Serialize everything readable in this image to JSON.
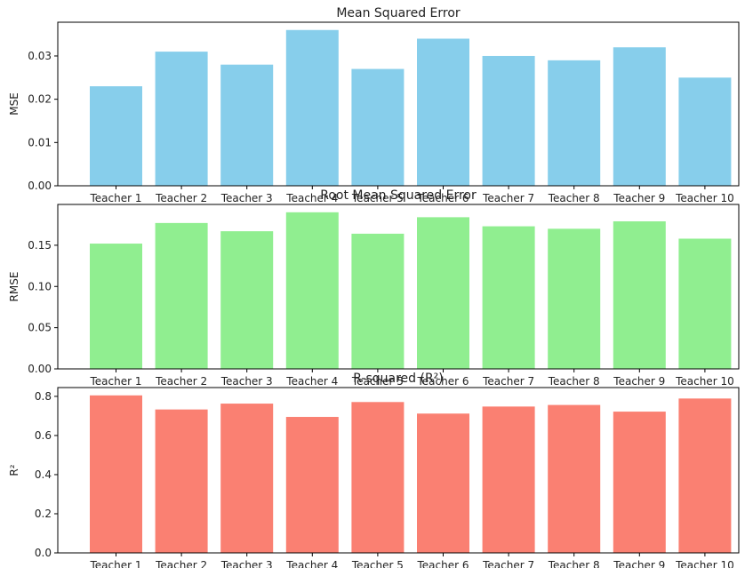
{
  "chart_data": [
    {
      "type": "bar",
      "title": "Mean Squared Error",
      "xlabel": "",
      "ylabel": "MSE",
      "color": "#87ceeb",
      "categories": [
        "Teacher 1",
        "Teacher 2",
        "Teacher 3",
        "Teacher 4",
        "Teacher 5",
        "Teacher 6",
        "Teacher 7",
        "Teacher 8",
        "Teacher 9",
        "Teacher 10"
      ],
      "values": [
        0.023,
        0.031,
        0.028,
        0.036,
        0.027,
        0.034,
        0.03,
        0.029,
        0.032,
        0.025
      ],
      "ylim": [
        0,
        0.0378
      ],
      "yticks": [
        0.0,
        0.01,
        0.02,
        0.03
      ],
      "ytick_labels": [
        "0.00",
        "0.01",
        "0.02",
        "0.03"
      ],
      "grid": false
    },
    {
      "type": "bar",
      "title": "Root Mean Squared Error",
      "xlabel": "",
      "ylabel": "RMSE",
      "color": "#90ee90",
      "categories": [
        "Teacher 1",
        "Teacher 2",
        "Teacher 3",
        "Teacher 4",
        "Teacher 5",
        "Teacher 6",
        "Teacher 7",
        "Teacher 8",
        "Teacher 9",
        "Teacher 10"
      ],
      "values": [
        0.152,
        0.177,
        0.167,
        0.19,
        0.164,
        0.184,
        0.173,
        0.17,
        0.179,
        0.158
      ],
      "ylim": [
        0,
        0.1995
      ],
      "yticks": [
        0.0,
        0.05,
        0.1,
        0.15
      ],
      "ytick_labels": [
        "0.00",
        "0.05",
        "0.10",
        "0.15"
      ],
      "grid": false
    },
    {
      "type": "bar",
      "title": "R-squared (R²)",
      "xlabel": "",
      "ylabel": "R²",
      "color": "#fa8072",
      "categories": [
        "Teacher 1",
        "Teacher 2",
        "Teacher 3",
        "Teacher 4",
        "Teacher 5",
        "Teacher 6",
        "Teacher 7",
        "Teacher 8",
        "Teacher 9",
        "Teacher 10"
      ],
      "values": [
        0.805,
        0.733,
        0.763,
        0.695,
        0.771,
        0.712,
        0.748,
        0.756,
        0.722,
        0.789
      ],
      "ylim": [
        0,
        0.845
      ],
      "yticks": [
        0.0,
        0.2,
        0.4,
        0.6,
        0.8
      ],
      "ytick_labels": [
        "0.0",
        "0.2",
        "0.4",
        "0.6",
        "0.8"
      ],
      "grid": false
    }
  ]
}
